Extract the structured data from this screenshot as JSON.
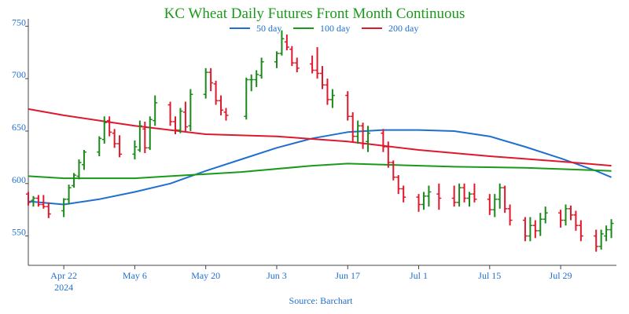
{
  "chart_data": {
    "type": "line",
    "title": "KC Wheat Daily Futures Front Month Continuous",
    "source": "Source: Barchart",
    "ylim": [
      522,
      757
    ],
    "yticks": [
      550,
      600,
      650,
      700,
      750
    ],
    "xlim": [
      "2024-04-15",
      "2024-08-09"
    ],
    "xticks": [
      {
        "date": "2024-04-22",
        "label": "Apr 22",
        "sublabel": "2024"
      },
      {
        "date": "2024-05-06",
        "label": "May 6"
      },
      {
        "date": "2024-05-20",
        "label": "May 20"
      },
      {
        "date": "2024-06-03",
        "label": "Jun 3"
      },
      {
        "date": "2024-06-17",
        "label": "Jun 17"
      },
      {
        "date": "2024-07-01",
        "label": "Jul 1"
      },
      {
        "date": "2024-07-15",
        "label": "Jul 15"
      },
      {
        "date": "2024-07-29",
        "label": "Jul 29"
      }
    ],
    "grid": false,
    "legend_position": "top-center",
    "colors": {
      "title": "#1a9a1a",
      "axis_text": "#1f6fd0",
      "up": "#1a8a1a",
      "down": "#e0182d",
      "ma50": "#1f6fd0",
      "ma100": "#1a9a1a",
      "ma200": "#e0182d"
    },
    "series": [
      {
        "name": "50 day",
        "color": "#1f6fd0",
        "points": [
          [
            "2024-04-15",
            583
          ],
          [
            "2024-04-22",
            580
          ],
          [
            "2024-04-29",
            585
          ],
          [
            "2024-05-06",
            592
          ],
          [
            "2024-05-13",
            600
          ],
          [
            "2024-05-20",
            612
          ],
          [
            "2024-05-27",
            623
          ],
          [
            "2024-06-03",
            634
          ],
          [
            "2024-06-10",
            643
          ],
          [
            "2024-06-17",
            649
          ],
          [
            "2024-06-24",
            651
          ],
          [
            "2024-07-01",
            651
          ],
          [
            "2024-07-08",
            650
          ],
          [
            "2024-07-15",
            645
          ],
          [
            "2024-07-22",
            635
          ],
          [
            "2024-07-29",
            624
          ],
          [
            "2024-08-05",
            612
          ],
          [
            "2024-08-08",
            606
          ]
        ]
      },
      {
        "name": "100 day",
        "color": "#1a9a1a",
        "points": [
          [
            "2024-04-15",
            607
          ],
          [
            "2024-04-22",
            605
          ],
          [
            "2024-05-06",
            605
          ],
          [
            "2024-05-13",
            607
          ],
          [
            "2024-05-27",
            611
          ],
          [
            "2024-06-10",
            617
          ],
          [
            "2024-06-17",
            619
          ],
          [
            "2024-06-24",
            618
          ],
          [
            "2024-07-08",
            616
          ],
          [
            "2024-07-22",
            615
          ],
          [
            "2024-08-08",
            612
          ]
        ]
      },
      {
        "name": "200 day",
        "color": "#e0182d",
        "points": [
          [
            "2024-04-15",
            671
          ],
          [
            "2024-04-22",
            665
          ],
          [
            "2024-05-06",
            655
          ],
          [
            "2024-05-20",
            647
          ],
          [
            "2024-06-03",
            645
          ],
          [
            "2024-06-17",
            640
          ],
          [
            "2024-07-01",
            632
          ],
          [
            "2024-07-15",
            626
          ],
          [
            "2024-07-29",
            621
          ],
          [
            "2024-08-08",
            617
          ]
        ]
      }
    ],
    "ohlc": [
      [
        "2024-04-15",
        590,
        592,
        579,
        582
      ],
      [
        "2024-04-16",
        584,
        588,
        578,
        586
      ],
      [
        "2024-04-17",
        586,
        589,
        578,
        580
      ],
      [
        "2024-04-18",
        580,
        589,
        576,
        578
      ],
      [
        "2024-04-19",
        578,
        582,
        567,
        571
      ],
      [
        "2024-04-22",
        574,
        586,
        568,
        585
      ],
      [
        "2024-04-23",
        585,
        599,
        580,
        596
      ],
      [
        "2024-04-24",
        598,
        610,
        596,
        608
      ],
      [
        "2024-04-25",
        607,
        623,
        604,
        620
      ],
      [
        "2024-04-26",
        618,
        632,
        613,
        630
      ],
      [
        "2024-04-29",
        630,
        645,
        626,
        643
      ],
      [
        "2024-04-30",
        642,
        664,
        638,
        658
      ],
      [
        "2024-05-01",
        660,
        664,
        645,
        649
      ],
      [
        "2024-05-02",
        648,
        652,
        634,
        638
      ],
      [
        "2024-05-03",
        638,
        646,
        625,
        628
      ],
      [
        "2024-05-06",
        628,
        641,
        623,
        635
      ],
      [
        "2024-05-07",
        632,
        660,
        630,
        655
      ],
      [
        "2024-05-08",
        652,
        659,
        629,
        634
      ],
      [
        "2024-05-09",
        634,
        664,
        632,
        661
      ],
      [
        "2024-05-10",
        660,
        684,
        655,
        677
      ],
      [
        "2024-05-13",
        675,
        678,
        655,
        659
      ],
      [
        "2024-05-14",
        659,
        664,
        647,
        651
      ],
      [
        "2024-05-15",
        651,
        672,
        648,
        669
      ],
      [
        "2024-05-16",
        668,
        678,
        650,
        654
      ],
      [
        "2024-05-17",
        655,
        690,
        650,
        685
      ],
      [
        "2024-05-20",
        685,
        710,
        681,
        706
      ],
      [
        "2024-05-21",
        706,
        710,
        688,
        696
      ],
      [
        "2024-05-22",
        695,
        698,
        675,
        679
      ],
      [
        "2024-05-23",
        679,
        684,
        665,
        670
      ],
      [
        "2024-05-24",
        668,
        672,
        660,
        665
      ],
      [
        "2024-05-28",
        664,
        701,
        661,
        699
      ],
      [
        "2024-05-29",
        699,
        704,
        688,
        699
      ],
      [
        "2024-05-30",
        699,
        708,
        692,
        704
      ],
      [
        "2024-05-31",
        703,
        720,
        700,
        716
      ],
      [
        "2024-06-03",
        716,
        726,
        710,
        724
      ],
      [
        "2024-06-04",
        724,
        746,
        722,
        738
      ],
      [
        "2024-06-05",
        735,
        742,
        727,
        730
      ],
      [
        "2024-06-06",
        728,
        731,
        712,
        715
      ],
      [
        "2024-06-07",
        715,
        720,
        706,
        710
      ],
      [
        "2024-06-10",
        714,
        722,
        705,
        708
      ],
      [
        "2024-06-11",
        708,
        730,
        700,
        705
      ],
      [
        "2024-06-12",
        705,
        712,
        690,
        694
      ],
      [
        "2024-06-13",
        694,
        700,
        675,
        680
      ],
      [
        "2024-06-14",
        680,
        690,
        672,
        684
      ],
      [
        "2024-06-17",
        684,
        688,
        660,
        664
      ],
      [
        "2024-06-18",
        664,
        668,
        640,
        645
      ],
      [
        "2024-06-19",
        645,
        660,
        638,
        655
      ],
      [
        "2024-06-20",
        655,
        658,
        633,
        638
      ],
      [
        "2024-06-21",
        640,
        655,
        630,
        648
      ],
      [
        "2024-06-24",
        648,
        652,
        630,
        635
      ],
      [
        "2024-06-25",
        635,
        640,
        615,
        620
      ],
      [
        "2024-06-26",
        620,
        622,
        603,
        606
      ],
      [
        "2024-06-27",
        606,
        608,
        590,
        595
      ],
      [
        "2024-06-28",
        595,
        598,
        582,
        587
      ],
      [
        "2024-07-01",
        587,
        590,
        573,
        580
      ],
      [
        "2024-07-02",
        580,
        592,
        575,
        588
      ],
      [
        "2024-07-03",
        588,
        598,
        578,
        592
      ],
      [
        "2024-07-05",
        590,
        600,
        575,
        586
      ],
      [
        "2024-07-08",
        586,
        598,
        578,
        582
      ],
      [
        "2024-07-09",
        582,
        600,
        578,
        596
      ],
      [
        "2024-07-10",
        596,
        600,
        582,
        586
      ],
      [
        "2024-07-11",
        586,
        592,
        578,
        590
      ],
      [
        "2024-07-12",
        590,
        600,
        582,
        585
      ],
      [
        "2024-07-15",
        585,
        590,
        570,
        575
      ],
      [
        "2024-07-16",
        575,
        590,
        568,
        585
      ],
      [
        "2024-07-17",
        585,
        600,
        576,
        596
      ],
      [
        "2024-07-18",
        596,
        598,
        572,
        576
      ],
      [
        "2024-07-19",
        576,
        580,
        560,
        565
      ],
      [
        "2024-07-22",
        565,
        568,
        545,
        550
      ],
      [
        "2024-07-23",
        550,
        568,
        545,
        560
      ],
      [
        "2024-07-24",
        560,
        565,
        548,
        555
      ],
      [
        "2024-07-25",
        555,
        572,
        550,
        566
      ],
      [
        "2024-07-26",
        566,
        578,
        562,
        572
      ],
      [
        "2024-07-29",
        572,
        575,
        558,
        565
      ],
      [
        "2024-07-30",
        565,
        580,
        560,
        576
      ],
      [
        "2024-07-31",
        576,
        579,
        565,
        570
      ],
      [
        "2024-08-01",
        570,
        574,
        555,
        560
      ],
      [
        "2024-08-02",
        560,
        565,
        545,
        550
      ],
      [
        "2024-08-05",
        550,
        556,
        535,
        540
      ],
      [
        "2024-08-06",
        540,
        556,
        537,
        552
      ],
      [
        "2024-08-07",
        550,
        560,
        545,
        556
      ],
      [
        "2024-08-08",
        556,
        566,
        548,
        562
      ]
    ]
  }
}
